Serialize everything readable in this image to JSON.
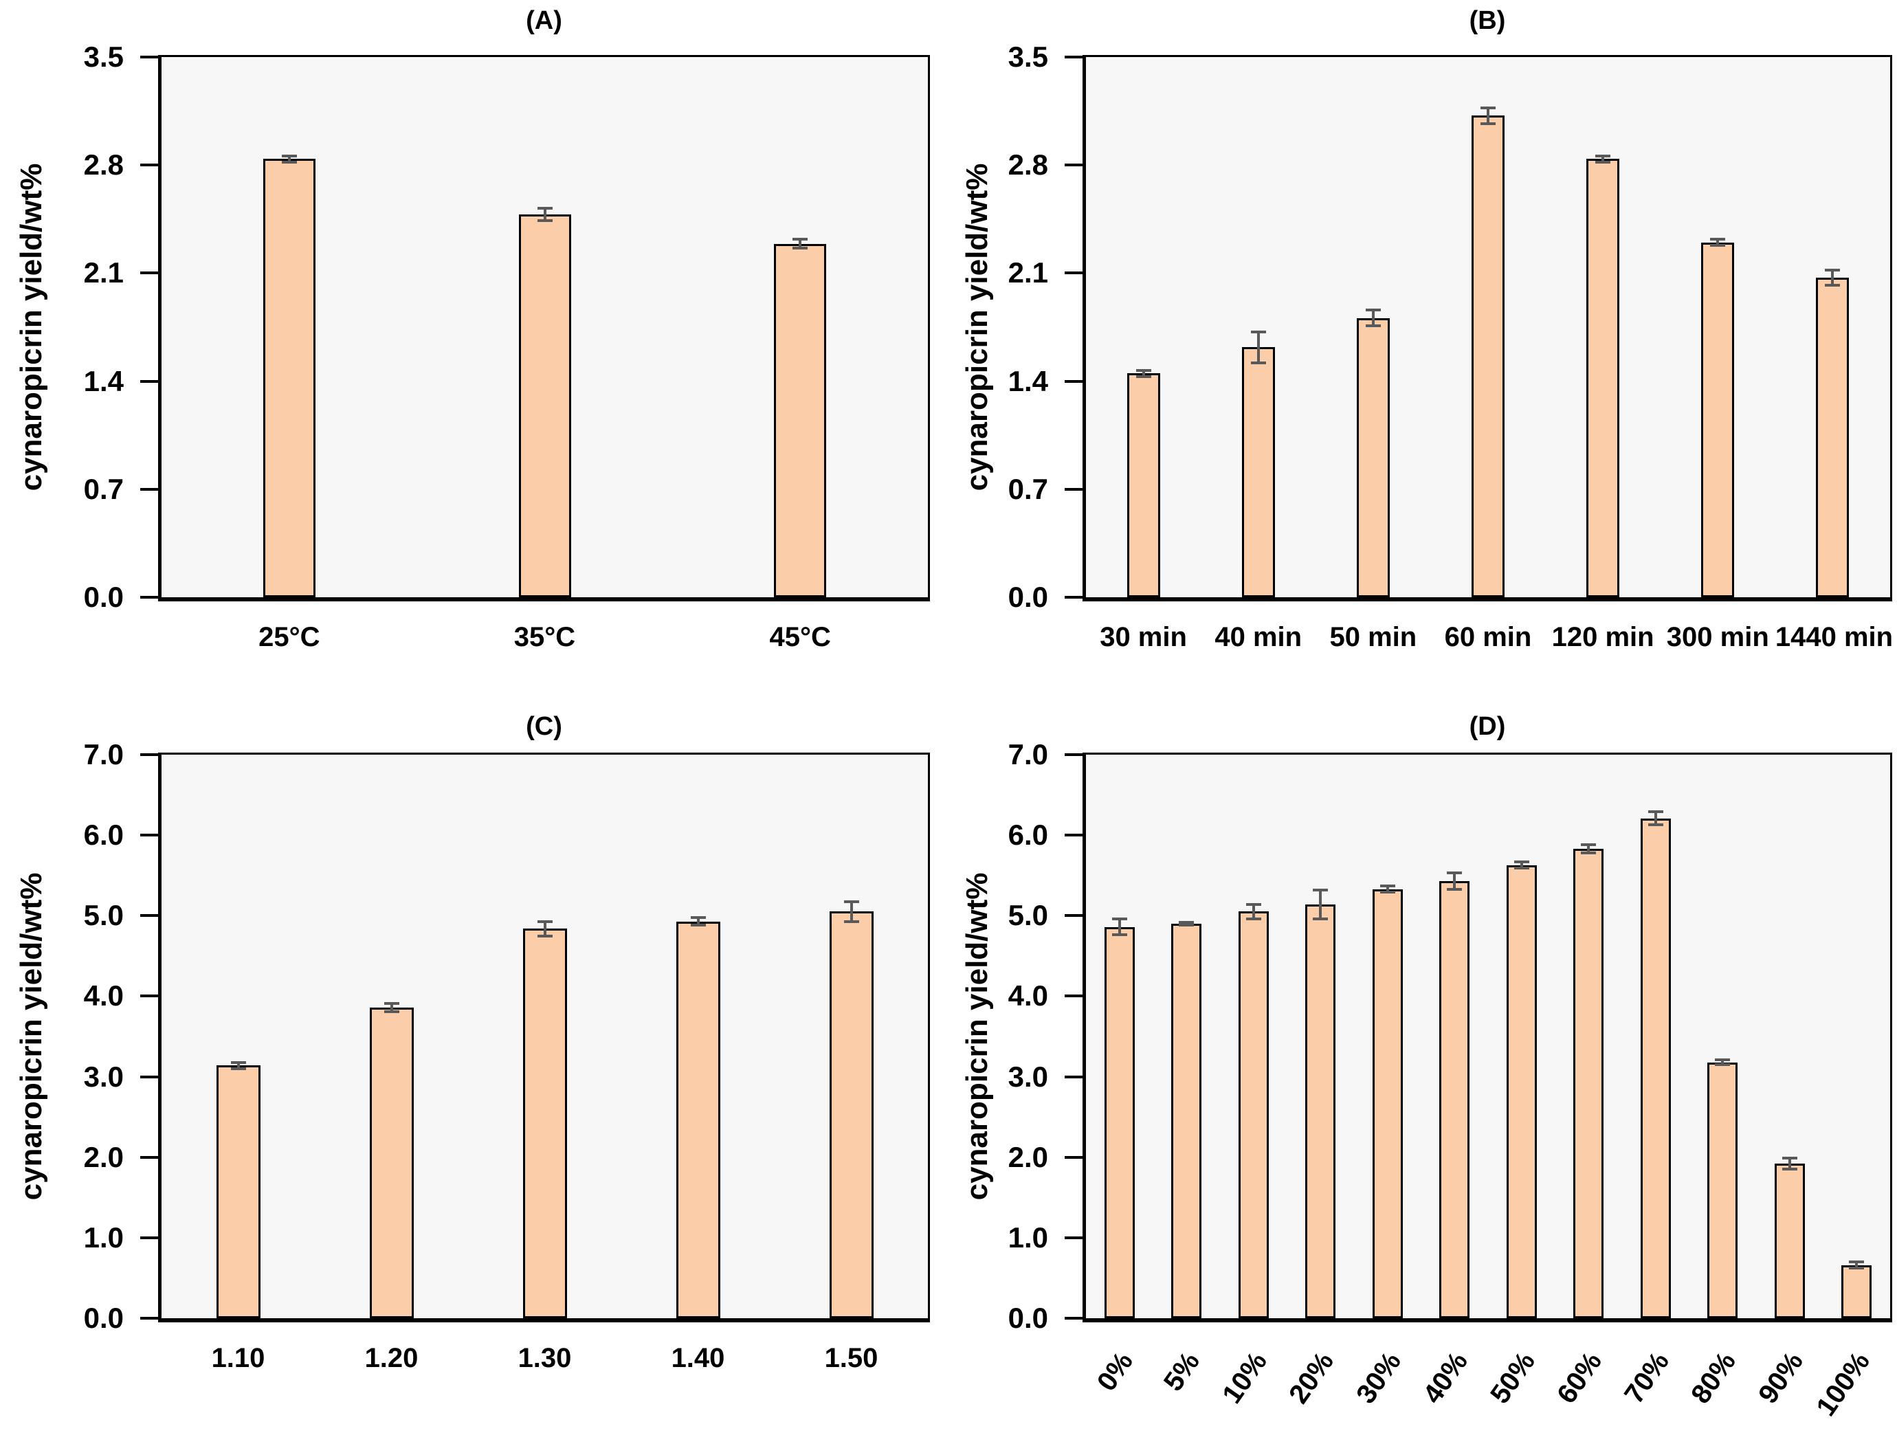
{
  "figure": {
    "ylabel": "cynaropicrin yield/wt%",
    "colors": {
      "bar_fill": "#fccda9",
      "bar_border": "#000000",
      "error": "#595959",
      "plot_bg": "#f7f7f7",
      "page_bg": "#ffffff",
      "axis": "#000000",
      "text": "#000000"
    }
  },
  "chart_data": [
    {
      "id": "A",
      "type": "bar",
      "title": "(A)",
      "categories": [
        "25°C",
        "35°C",
        "45°C"
      ],
      "values": [
        2.84,
        2.48,
        2.29
      ],
      "errors": [
        0.02,
        0.04,
        0.03
      ],
      "ylabel": "cynaropicrin yield/wt%",
      "ylim": [
        0,
        3.5
      ],
      "ytick_values": [
        0,
        0.7,
        1.4,
        2.1,
        2.8,
        3.5
      ],
      "ytick_labels": [
        "0.0",
        "0.7",
        "1.4",
        "2.1",
        "2.8",
        "3.5"
      ],
      "x_labels_rotated": false,
      "grid": false,
      "legend": "none"
    },
    {
      "id": "B",
      "type": "bar",
      "title": "(B)",
      "categories": [
        "30 min",
        "40 min",
        "50 min",
        "60 min",
        "120 min",
        "300 min",
        "1440 min"
      ],
      "values": [
        1.45,
        1.62,
        1.81,
        3.12,
        2.84,
        2.3,
        2.07
      ],
      "errors": [
        0.02,
        0.1,
        0.05,
        0.05,
        0.02,
        0.02,
        0.05
      ],
      "ylabel": "cynaropicrin yield/wt%",
      "ylim": [
        0,
        3.5
      ],
      "ytick_values": [
        0,
        0.7,
        1.4,
        2.1,
        2.8,
        3.5
      ],
      "ytick_labels": [
        "0.0",
        "0.7",
        "1.4",
        "2.1",
        "2.8",
        "3.5"
      ],
      "x_labels_rotated": false,
      "grid": false,
      "legend": "none"
    },
    {
      "id": "C",
      "type": "bar",
      "title": "(C)",
      "categories": [
        "1.10",
        "1.20",
        "1.30",
        "1.40",
        "1.50"
      ],
      "values": [
        3.14,
        3.86,
        4.84,
        4.93,
        5.05
      ],
      "errors": [
        0.04,
        0.05,
        0.09,
        0.05,
        0.12
      ],
      "ylabel": "cynaropicrin yield/wt%",
      "ylim": [
        0,
        7.0
      ],
      "ytick_values": [
        0,
        1,
        2,
        3,
        4,
        5,
        6,
        7
      ],
      "ytick_labels": [
        "0.0",
        "1.0",
        "2.0",
        "3.0",
        "4.0",
        "5.0",
        "6.0",
        "7.0"
      ],
      "x_labels_rotated": false,
      "grid": false,
      "legend": "none"
    },
    {
      "id": "D",
      "type": "bar",
      "title": "(D)",
      "categories": [
        "0%",
        "5%",
        "10%",
        "20%",
        "30%",
        "40%",
        "50%",
        "60%",
        "70%",
        "80%",
        "90%",
        "100%"
      ],
      "values": [
        4.86,
        4.9,
        5.05,
        5.14,
        5.33,
        5.43,
        5.63,
        5.83,
        6.21,
        3.18,
        1.92,
        0.66
      ],
      "errors": [
        0.1,
        0.02,
        0.09,
        0.18,
        0.04,
        0.1,
        0.04,
        0.05,
        0.08,
        0.03,
        0.07,
        0.04
      ],
      "ylabel": "cynaropicrin yield/wt%",
      "ylim": [
        0,
        7.0
      ],
      "ytick_values": [
        0,
        1,
        2,
        3,
        4,
        5,
        6,
        7
      ],
      "ytick_labels": [
        "0.0",
        "1.0",
        "2.0",
        "3.0",
        "4.0",
        "5.0",
        "6.0",
        "7.0"
      ],
      "x_labels_rotated": true,
      "grid": false,
      "legend": "none"
    }
  ]
}
